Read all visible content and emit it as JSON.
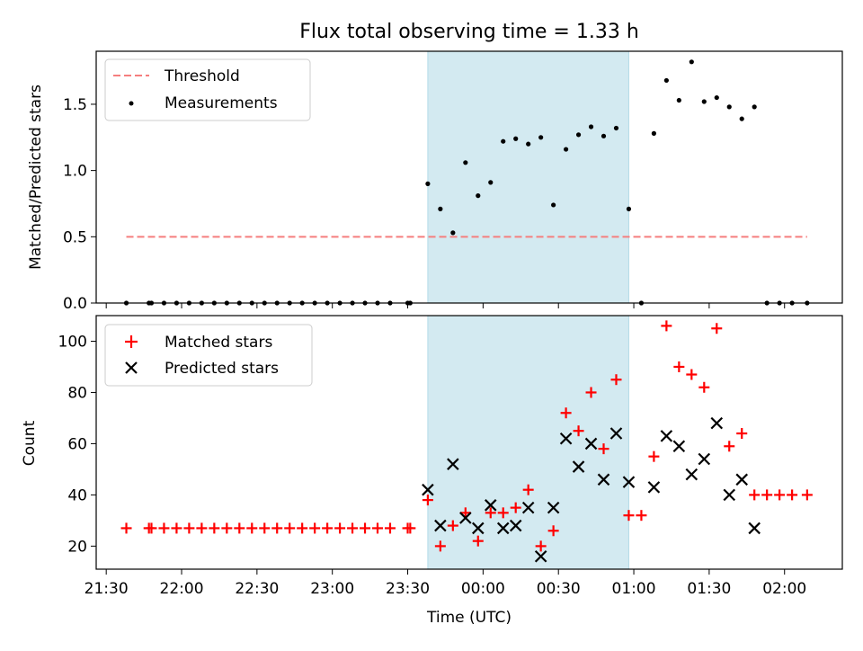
{
  "chart_data": [
    {
      "type": "scatter",
      "title": "Flux total observing time = 1.33 h",
      "ylabel": "Matched/Predicted stars",
      "ylim": [
        0,
        1.9
      ],
      "yticks": [
        "0.0",
        "0.5",
        "1.0",
        "1.5"
      ],
      "yticks_values": [
        0,
        0.5,
        1.0,
        1.5
      ],
      "xlim": [
        "21:26",
        "02:23"
      ],
      "shade": {
        "start": "23:38",
        "end": "00:58",
        "color": "#d3eaf1"
      },
      "legend_position": "upper-left",
      "series": [
        {
          "name": "Threshold",
          "style": "dashed-line",
          "color": "#f57e7e",
          "x": [
            "21:38",
            "02:09"
          ],
          "values": [
            0.5,
            0.5
          ]
        },
        {
          "name": "Measurements",
          "style": "dot",
          "color": "#000000",
          "points": [
            [
              "21:38",
              0
            ],
            [
              "21:47",
              0
            ],
            [
              "21:48",
              0
            ],
            [
              "21:53",
              0
            ],
            [
              "21:58",
              0
            ],
            [
              "22:03",
              0
            ],
            [
              "22:08",
              0
            ],
            [
              "22:13",
              0
            ],
            [
              "22:18",
              0
            ],
            [
              "22:23",
              0
            ],
            [
              "22:28",
              0
            ],
            [
              "22:33",
              0
            ],
            [
              "22:38",
              0
            ],
            [
              "22:43",
              0
            ],
            [
              "22:48",
              0
            ],
            [
              "22:53",
              0
            ],
            [
              "22:58",
              0
            ],
            [
              "23:03",
              0
            ],
            [
              "23:08",
              0
            ],
            [
              "23:13",
              0
            ],
            [
              "23:18",
              0
            ],
            [
              "23:23",
              0
            ],
            [
              "23:30",
              0
            ],
            [
              "23:31",
              0
            ],
            [
              "23:38",
              0.9
            ],
            [
              "23:43",
              0.71
            ],
            [
              "23:48",
              0.53
            ],
            [
              "23:53",
              1.06
            ],
            [
              "23:58",
              0.81
            ],
            [
              "00:03",
              0.91
            ],
            [
              "00:08",
              1.22
            ],
            [
              "00:13",
              1.24
            ],
            [
              "00:18",
              1.2
            ],
            [
              "00:23",
              1.25
            ],
            [
              "00:28",
              0.74
            ],
            [
              "00:33",
              1.16
            ],
            [
              "00:38",
              1.27
            ],
            [
              "00:43",
              1.33
            ],
            [
              "00:48",
              1.26
            ],
            [
              "00:53",
              1.32
            ],
            [
              "00:58",
              0.71
            ],
            [
              "01:03",
              0
            ],
            [
              "01:08",
              1.28
            ],
            [
              "01:13",
              1.68
            ],
            [
              "01:18",
              1.53
            ],
            [
              "01:23",
              1.82
            ],
            [
              "01:28",
              1.52
            ],
            [
              "01:33",
              1.55
            ],
            [
              "01:38",
              1.48
            ],
            [
              "01:43",
              1.39
            ],
            [
              "01:48",
              1.48
            ],
            [
              "01:53",
              0
            ],
            [
              "01:58",
              0
            ],
            [
              "02:03",
              0
            ],
            [
              "02:09",
              0
            ]
          ]
        }
      ]
    },
    {
      "type": "scatter",
      "xlabel": "Time (UTC)",
      "ylabel": "Count",
      "ylim": [
        11,
        110
      ],
      "yticks": [
        "20",
        "40",
        "60",
        "80",
        "100"
      ],
      "yticks_values": [
        20,
        40,
        60,
        80,
        100
      ],
      "xticks": [
        "21:30",
        "22:00",
        "22:30",
        "23:00",
        "23:30",
        "00:00",
        "00:30",
        "01:00",
        "01:30",
        "02:00"
      ],
      "xlim": [
        "21:26",
        "02:23"
      ],
      "shade": {
        "start": "23:38",
        "end": "00:58",
        "color": "#d3eaf1"
      },
      "legend_position": "upper-left",
      "series": [
        {
          "name": "Matched stars",
          "style": "plus",
          "color": "#ff0000",
          "points": [
            [
              "21:38",
              27
            ],
            [
              "21:47",
              27
            ],
            [
              "21:48",
              27
            ],
            [
              "21:53",
              27
            ],
            [
              "21:58",
              27
            ],
            [
              "22:03",
              27
            ],
            [
              "22:08",
              27
            ],
            [
              "22:13",
              27
            ],
            [
              "22:18",
              27
            ],
            [
              "22:23",
              27
            ],
            [
              "22:28",
              27
            ],
            [
              "22:33",
              27
            ],
            [
              "22:38",
              27
            ],
            [
              "22:43",
              27
            ],
            [
              "22:48",
              27
            ],
            [
              "22:53",
              27
            ],
            [
              "22:58",
              27
            ],
            [
              "23:03",
              27
            ],
            [
              "23:08",
              27
            ],
            [
              "23:13",
              27
            ],
            [
              "23:18",
              27
            ],
            [
              "23:23",
              27
            ],
            [
              "23:30",
              27
            ],
            [
              "23:31",
              27
            ],
            [
              "23:38",
              38
            ],
            [
              "23:43",
              20
            ],
            [
              "23:48",
              28
            ],
            [
              "23:53",
              33
            ],
            [
              "23:58",
              22
            ],
            [
              "00:03",
              33
            ],
            [
              "00:08",
              33
            ],
            [
              "00:13",
              35
            ],
            [
              "00:18",
              42
            ],
            [
              "00:23",
              20
            ],
            [
              "00:28",
              26
            ],
            [
              "00:33",
              72
            ],
            [
              "00:38",
              65
            ],
            [
              "00:43",
              80
            ],
            [
              "00:48",
              58
            ],
            [
              "00:53",
              85
            ],
            [
              "00:58",
              32
            ],
            [
              "01:03",
              32
            ],
            [
              "01:08",
              55
            ],
            [
              "01:13",
              106
            ],
            [
              "01:18",
              90
            ],
            [
              "01:23",
              87
            ],
            [
              "01:28",
              82
            ],
            [
              "01:33",
              105
            ],
            [
              "01:38",
              59
            ],
            [
              "01:43",
              64
            ],
            [
              "01:48",
              40
            ],
            [
              "01:53",
              40
            ],
            [
              "01:58",
              40
            ],
            [
              "02:03",
              40
            ],
            [
              "02:09",
              40
            ]
          ]
        },
        {
          "name": "Predicted stars",
          "style": "x",
          "color": "#000000",
          "points": [
            [
              "23:38",
              42
            ],
            [
              "23:43",
              28
            ],
            [
              "23:48",
              52
            ],
            [
              "23:53",
              31
            ],
            [
              "23:58",
              27
            ],
            [
              "00:03",
              36
            ],
            [
              "00:08",
              27
            ],
            [
              "00:13",
              28
            ],
            [
              "00:18",
              35
            ],
            [
              "00:23",
              16
            ],
            [
              "00:28",
              35
            ],
            [
              "00:33",
              62
            ],
            [
              "00:38",
              51
            ],
            [
              "00:43",
              60
            ],
            [
              "00:48",
              46
            ],
            [
              "00:53",
              64
            ],
            [
              "00:58",
              45
            ],
            [
              "01:08",
              43
            ],
            [
              "01:13",
              63
            ],
            [
              "01:18",
              59
            ],
            [
              "01:23",
              48
            ],
            [
              "01:28",
              54
            ],
            [
              "01:33",
              68
            ],
            [
              "01:38",
              40
            ],
            [
              "01:43",
              46
            ],
            [
              "01:48",
              27
            ]
          ]
        }
      ]
    }
  ]
}
